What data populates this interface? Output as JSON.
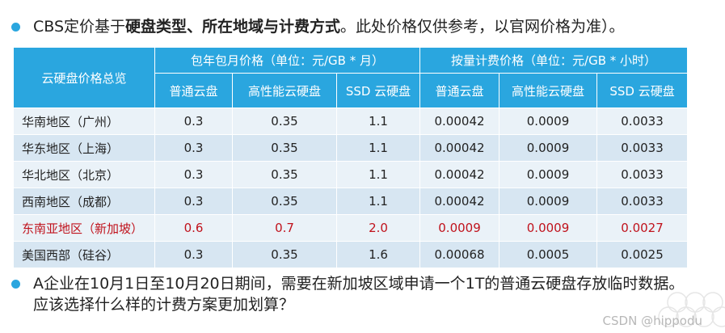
{
  "intro": {
    "prefix": "CBS定价基于",
    "bold": "硬盘类型、所在地域与计费方式",
    "suffix": "。此处价格仅供参考，以官网价格为准）。"
  },
  "table": {
    "corner_label": "云硬盘价格总览",
    "groups": [
      "包年包月价格（单位：元/GB * 月）",
      "按量计费价格（单位：元/GB * 小时）"
    ],
    "columns": [
      "普通云盘",
      "高性能云硬盘",
      "SSD 云硬盘",
      "普通云盘",
      "高性能云硬盘",
      "SSD 云硬盘"
    ],
    "rows": [
      {
        "region": "华南地区（广州）",
        "values": [
          "0.3",
          "0.35",
          "1.1",
          "0.00042",
          "0.0009",
          "0.0033"
        ]
      },
      {
        "region": "华东地区（上海）",
        "values": [
          "0.3",
          "0.35",
          "1.1",
          "0.00042",
          "0.0009",
          "0.0033"
        ]
      },
      {
        "region": "华北地区（北京）",
        "values": [
          "0.3",
          "0.35",
          "1.1",
          "0.00042",
          "0.0009",
          "0.0033"
        ]
      },
      {
        "region": "西南地区（成都）",
        "values": [
          "0.3",
          "0.35",
          "1.1",
          "0.00042",
          "0.0009",
          "0.0033"
        ]
      },
      {
        "region": "东南亚地区（新加坡）",
        "values": [
          "0.6",
          "0.7",
          "2.0",
          "0.0009",
          "0.0009",
          "0.0027"
        ]
      },
      {
        "region": "美国西部（硅谷）",
        "values": [
          "0.3",
          "0.35",
          "1.6",
          "0.00068",
          "0.0005",
          "0.0025"
        ]
      }
    ]
  },
  "question": "A企业在10月1日至10月20日期间，需要在新加坡区域申请一个1T的普通云硬盘存放临时数据。应该选择什么样的计费方案更加划算？",
  "watermark": "CSDN @hippodu",
  "colors": {
    "header_blue": "#2aa6df",
    "row_light": "#eaf2f8",
    "row_dark": "#d7e6f2",
    "highlight_red": "#c0121c"
  }
}
